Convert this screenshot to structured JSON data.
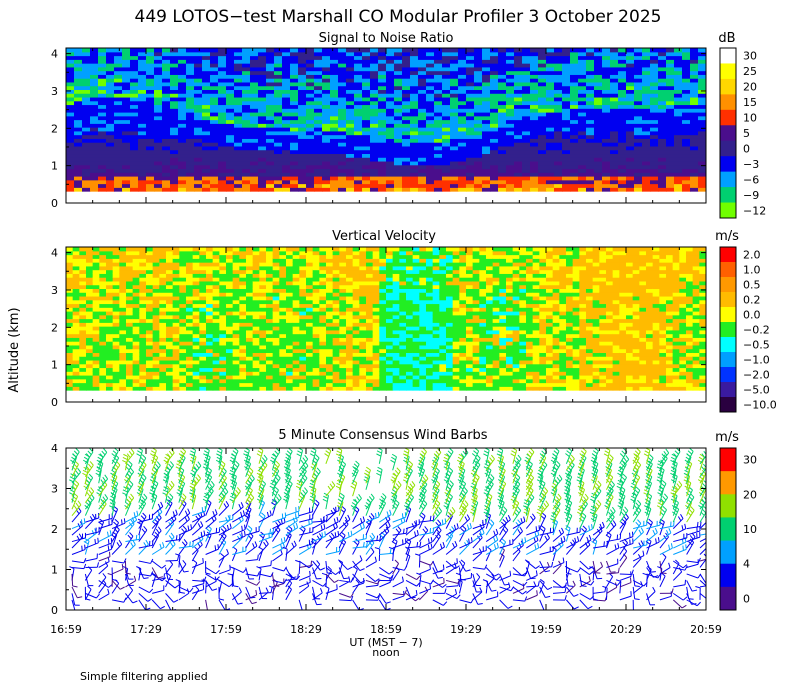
{
  "title": "449 LOTOS−test Marshall CO Modular Profiler  3 October 2025",
  "y_axis_label": "Altitude (km)",
  "x_axis": {
    "label": "UT  (MST − 7)",
    "noon_label": "noon",
    "ticks": [
      "16:59",
      "17:29",
      "17:59",
      "18:29",
      "18:59",
      "19:29",
      "19:59",
      "20:29",
      "20:59"
    ]
  },
  "footnote": "Simple filtering applied",
  "chart_data": [
    {
      "type": "heatmap",
      "title": "Signal to Noise Ratio",
      "unit": "dB",
      "x_range": [
        "16:59",
        "20:59"
      ],
      "ylim": [
        0,
        4
      ],
      "yticks": [
        "0",
        "1",
        "2",
        "3",
        "4"
      ],
      "colorbar": {
        "labels": [
          "30",
          "25",
          "20",
          "15",
          "10",
          "5",
          "0",
          "−3",
          "−6",
          "−9",
          "−12"
        ],
        "colors": [
          "#ffffff",
          "#ffff00",
          "#ffd700",
          "#ff9000",
          "#ff3000",
          "#4a0e8c",
          "#33208c",
          "#0000f0",
          "#00a0ff",
          "#00d070",
          "#70ff00"
        ]
      }
    },
    {
      "type": "heatmap",
      "title": "Vertical Velocity",
      "unit": "m/s",
      "x_range": [
        "16:59",
        "20:59"
      ],
      "ylim": [
        0,
        4
      ],
      "yticks": [
        "0",
        "1",
        "2",
        "3",
        "4"
      ],
      "colorbar": {
        "labels": [
          "2.0",
          "1.0",
          "0.5",
          "0.2",
          "0.0",
          "−0.2",
          "−0.5",
          "−1.0",
          "−2.0",
          "−5.0",
          "−10.0"
        ],
        "colors": [
          "#ff0000",
          "#ff6000",
          "#ff9900",
          "#ffbb00",
          "#ffff00",
          "#22ee22",
          "#00ffff",
          "#009fff",
          "#0033ff",
          "#3a1a9f",
          "#2a0040"
        ]
      }
    },
    {
      "type": "scatter",
      "title": "5 Minute Consensus Wind Barbs",
      "unit": "m/s",
      "x_range": [
        "16:59",
        "20:59"
      ],
      "ylim": [
        0,
        4
      ],
      "yticks": [
        "0",
        "1",
        "2",
        "3",
        "4"
      ],
      "colorbar": {
        "labels": [
          "30",
          "20",
          "10",
          "4",
          "0"
        ],
        "colors": [
          "#ff0000",
          "#ff9900",
          "#90e000",
          "#00d070",
          "#00a0ff",
          "#0000f0",
          "#4a0e8c"
        ]
      }
    }
  ]
}
